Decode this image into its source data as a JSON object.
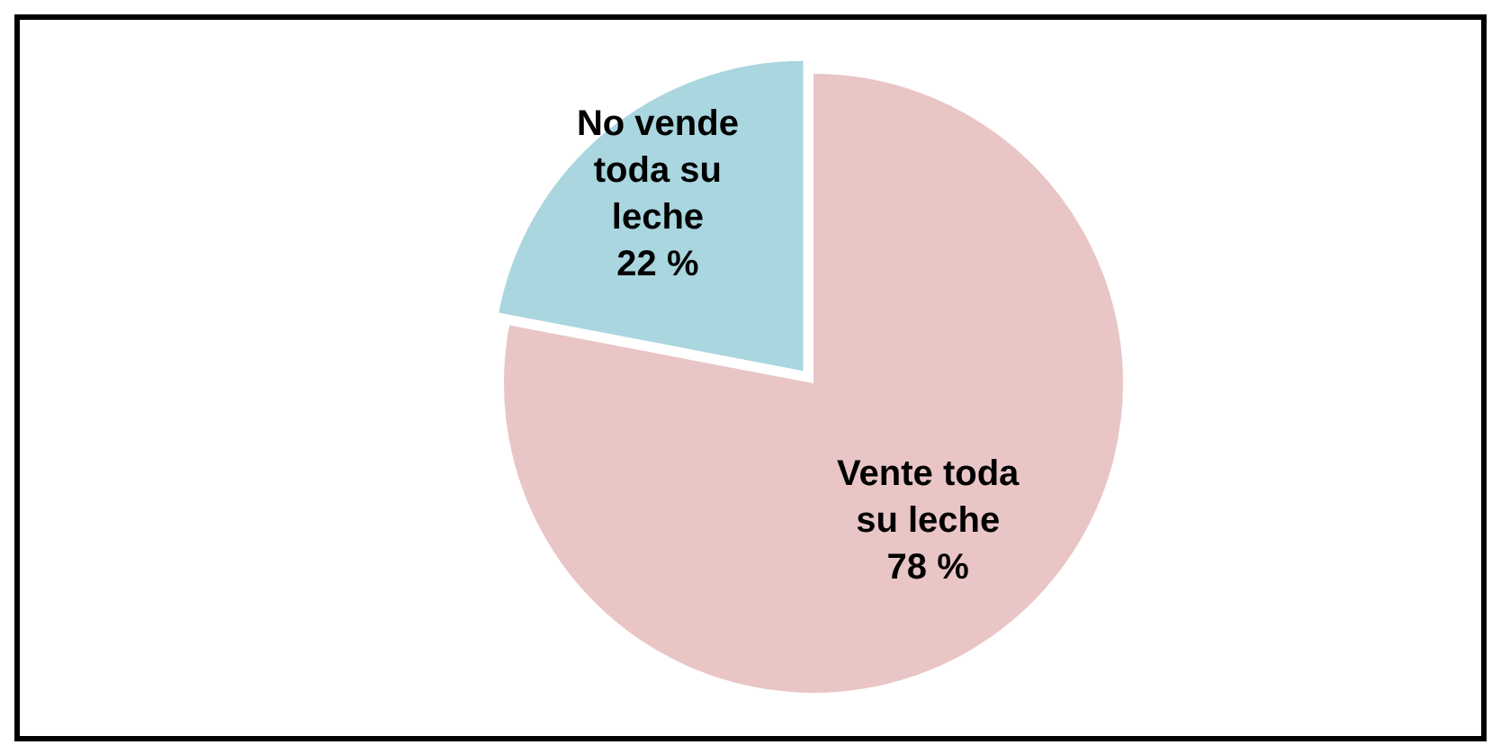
{
  "chart_data": {
    "type": "pie",
    "categories": [
      "No vende toda su leche",
      "Vente toda su leche"
    ],
    "values": [
      22,
      78
    ],
    "colors": [
      "#a9d6df",
      "#e9c5c5"
    ],
    "value_labels": [
      "22 %",
      "78 %"
    ],
    "legend": false
  }
}
